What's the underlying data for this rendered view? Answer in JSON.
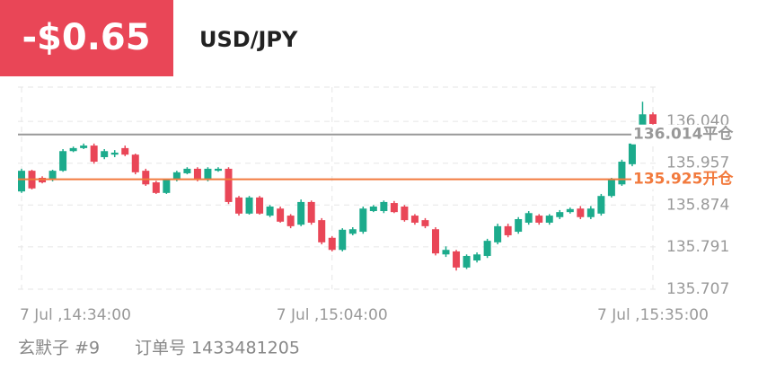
{
  "header": {
    "pnl": "-$0.65",
    "symbol": "USD/JPY"
  },
  "chart_data": {
    "type": "candlestick",
    "categories": [
      "7 Jul ,14:34:00",
      null,
      null,
      null,
      null,
      null,
      null,
      null,
      null,
      null,
      null,
      null,
      null,
      null,
      null,
      null,
      null,
      null,
      null,
      null,
      null,
      null,
      null,
      null,
      null,
      null,
      null,
      null,
      null,
      null,
      "7 Jul ,15:04:00",
      null,
      null,
      null,
      null,
      null,
      null,
      null,
      null,
      null,
      null,
      null,
      null,
      null,
      null,
      null,
      null,
      null,
      null,
      null,
      null,
      null,
      null,
      null,
      null,
      null,
      null,
      null,
      null,
      null,
      null,
      "7 Jul ,15:35:00"
    ],
    "open": [
      135.901,
      135.942,
      135.928,
      135.924,
      135.942,
      135.981,
      135.987,
      135.992,
      135.969,
      135.974,
      135.987,
      135.974,
      135.942,
      135.919,
      135.898,
      135.924,
      135.937,
      135.946,
      135.924,
      135.942,
      135.946,
      135.889,
      135.857,
      135.889,
      135.853,
      135.867,
      135.853,
      135.835,
      135.88,
      135.844,
      135.809,
      135.785,
      135.817,
      135.821,
      135.862,
      135.862,
      135.878,
      135.871,
      135.853,
      135.844,
      135.826,
      135.776,
      135.782,
      135.75,
      135.764,
      135.773,
      135.8,
      135.832,
      135.821,
      135.839,
      135.853,
      135.839,
      135.85,
      135.86,
      135.867,
      135.85,
      135.857,
      135.892,
      135.915,
      135.955,
      136.031,
      136.054
    ],
    "high": [
      135.946,
      135.944,
      135.931,
      135.944,
      135.985,
      135.99,
      135.996,
      135.996,
      135.985,
      135.983,
      135.992,
      135.976,
      135.946,
      135.922,
      135.926,
      135.942,
      135.949,
      135.949,
      135.949,
      135.949,
      135.949,
      135.892,
      135.892,
      135.892,
      135.874,
      135.871,
      135.856,
      135.885,
      135.883,
      135.848,
      135.812,
      135.828,
      135.83,
      135.871,
      135.874,
      135.883,
      135.882,
      135.874,
      135.856,
      135.848,
      135.83,
      135.792,
      135.785,
      135.776,
      135.78,
      135.807,
      135.837,
      135.837,
      135.85,
      135.862,
      135.856,
      135.856,
      135.864,
      135.869,
      135.872,
      135.872,
      135.896,
      135.928,
      135.964,
      135.999,
      136.079,
      136.058
    ],
    "low": [
      135.898,
      135.905,
      135.917,
      135.921,
      135.94,
      135.979,
      135.985,
      135.956,
      135.965,
      135.969,
      135.971,
      135.935,
      135.912,
      135.896,
      135.896,
      135.921,
      135.935,
      135.921,
      135.921,
      135.94,
      135.876,
      135.853,
      135.855,
      135.855,
      135.85,
      135.839,
      135.828,
      135.832,
      135.835,
      135.796,
      135.782,
      135.782,
      135.814,
      135.817,
      135.86,
      135.858,
      135.858,
      135.841,
      135.835,
      135.828,
      135.774,
      135.771,
      135.744,
      135.747,
      135.76,
      135.769,
      135.796,
      135.81,
      135.817,
      135.835,
      135.835,
      135.835,
      135.846,
      135.857,
      135.846,
      135.846,
      135.853,
      135.889,
      135.912,
      135.951,
      136.028,
      136.031
    ],
    "close": [
      135.942,
      135.907,
      135.919,
      135.942,
      135.981,
      135.987,
      135.992,
      135.96,
      135.981,
      135.978,
      135.974,
      135.939,
      135.915,
      135.898,
      135.924,
      135.939,
      135.946,
      135.924,
      135.946,
      135.946,
      135.88,
      135.857,
      135.889,
      135.857,
      135.871,
      135.841,
      135.832,
      135.88,
      135.839,
      135.8,
      135.785,
      135.825,
      135.826,
      135.867,
      135.871,
      135.88,
      135.86,
      135.844,
      135.839,
      135.832,
      135.778,
      135.785,
      135.75,
      135.773,
      135.776,
      135.803,
      135.832,
      135.814,
      135.846,
      135.858,
      135.839,
      135.853,
      135.86,
      135.866,
      135.85,
      135.867,
      135.892,
      135.924,
      135.96,
      135.996,
      136.054,
      136.035
    ],
    "up_color": "#1cab8c",
    "down_color": "#e94657",
    "ylim": [
      135.707,
      136.108
    ],
    "yticks": [
      {
        "value": 136.04,
        "label": "136.040"
      },
      135.957,
      135.874,
      135.791,
      135.707
    ],
    "grid": true,
    "ref_lines": [
      {
        "value": 136.014,
        "label": "136.014平仓",
        "color": "#999999"
      },
      {
        "value": 135.925,
        "label": "135.925开仓",
        "color": "#f27a3d"
      }
    ]
  },
  "footer": {
    "author": "玄默子 #9",
    "order": "订单号 1433481205"
  }
}
